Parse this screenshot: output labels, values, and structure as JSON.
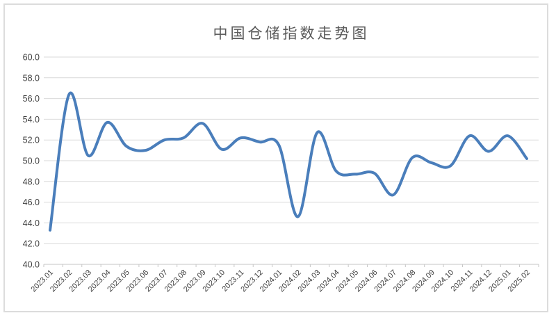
{
  "colors": {
    "background": "#FFFFFF",
    "line": "#4A7EBB",
    "gridline": "#D9D9D9",
    "axis_line": "#C6C6C6",
    "axis_text": "#404040",
    "title_text": "#595959",
    "frame_border": "#DCDCDC"
  },
  "chart_data": {
    "type": "line",
    "title": "中国仓储指数走势图",
    "smooth": true,
    "grid": true,
    "legend": false,
    "xlabel": "",
    "ylabel": "",
    "ylim": [
      40.0,
      60.0
    ],
    "ytick_step": 2.0,
    "ytick_labels": [
      "60.0",
      "58.0",
      "56.0",
      "54.0",
      "52.0",
      "50.0",
      "48.0",
      "46.0",
      "44.0",
      "42.0",
      "40.0"
    ],
    "categories": [
      "2023.01",
      "2023.02",
      "2023.03",
      "2023.04",
      "2023.05",
      "2023.06",
      "2023.07",
      "2023.08",
      "2023.09",
      "2023.10",
      "2023.11",
      "2023.12",
      "2024.01",
      "2024.02",
      "2024.03",
      "2024.04",
      "2024.05",
      "2024.06",
      "2024.07",
      "2024.08",
      "2024.09",
      "2024.10",
      "2024.11",
      "2024.12",
      "2025.01",
      "2025.02"
    ],
    "values": [
      43.3,
      56.4,
      50.5,
      53.7,
      51.4,
      51.0,
      52.0,
      52.2,
      53.6,
      51.1,
      52.2,
      51.8,
      51.5,
      44.6,
      52.7,
      49.0,
      48.7,
      48.8,
      46.7,
      50.3,
      49.8,
      49.5,
      52.4,
      50.9,
      52.4,
      50.2
    ]
  }
}
